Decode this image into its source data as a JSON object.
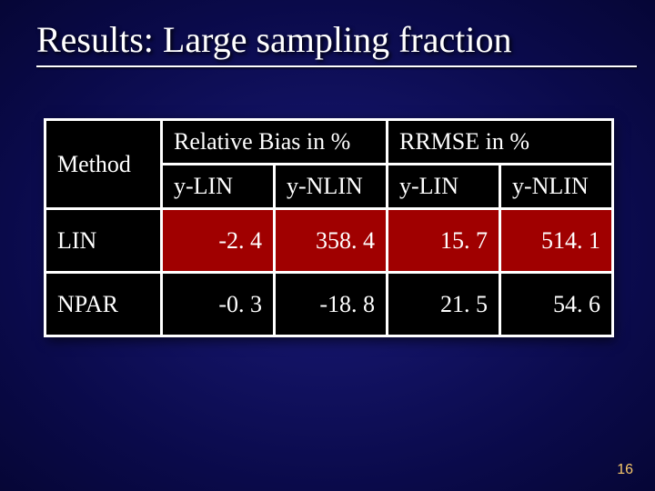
{
  "slide": {
    "title": "Results: Large sampling fraction",
    "page_number": "16"
  },
  "table": {
    "type": "table",
    "background_colors": {
      "header": "#000000",
      "row_label": "#000000",
      "highlight": "#a00000",
      "normal": "#000000"
    },
    "border_color": "#ffffff",
    "text_color": "#ffffff",
    "font_family": "Times New Roman",
    "header_fontsize": 26,
    "cell_fontsize": 26,
    "columns": {
      "method_label": "Method",
      "group1": "Relative Bias in %",
      "group2": "RRMSE in %",
      "sub": [
        "y-LIN",
        "y-NLIN",
        "y-LIN",
        "y-NLIN"
      ]
    },
    "rows": [
      {
        "label": "LIN",
        "values": [
          "-2. 4",
          "358. 4",
          "15. 7",
          "514. 1"
        ],
        "highlight": [
          true,
          true,
          true,
          true
        ]
      },
      {
        "label": "NPAR",
        "values": [
          "-0. 3",
          "-18. 8",
          "21. 5",
          "54. 6"
        ],
        "highlight": [
          false,
          false,
          false,
          false
        ]
      }
    ]
  }
}
